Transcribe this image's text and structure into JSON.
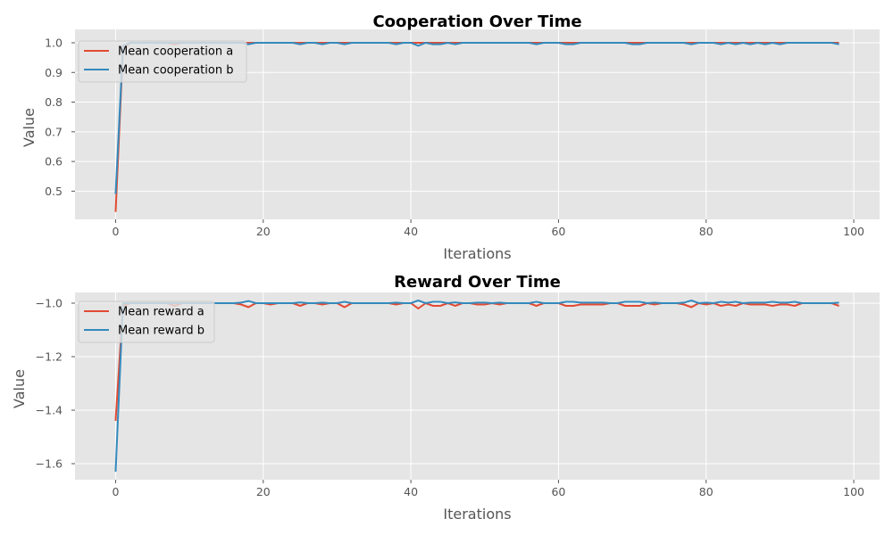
{
  "chart_data": [
    {
      "type": "line",
      "title": "Cooperation Over Time",
      "xlabel": "Iterations",
      "ylabel": "Value",
      "xlim": [
        -5.5,
        103.5
      ],
      "ylim": [
        0.405,
        1.045
      ],
      "xticks": [
        0,
        20,
        40,
        60,
        80,
        100
      ],
      "xtick_labels": [
        "0",
        "20",
        "40",
        "60",
        "80",
        "100"
      ],
      "yticks": [
        0.5,
        0.6,
        0.7,
        0.8,
        0.9,
        1.0
      ],
      "ytick_labels": [
        "0.5",
        "0.6",
        "0.7",
        "0.8",
        "0.9",
        "1.0"
      ],
      "grid": true,
      "legend_position": "upper-left",
      "series": [
        {
          "name": "Mean cooperation a",
          "color": "#E24A33",
          "y": [
            0.43,
            0.98,
            1.0,
            1.0,
            1.0,
            1.0,
            1.0,
            1.0,
            0.995,
            1.0,
            1.0,
            1.0,
            1.0,
            1.0,
            1.0,
            1.0,
            1.0,
            1.0,
            1.0,
            1.0,
            1.0,
            1.0,
            1.0,
            1.0,
            1.0,
            1.0,
            1.0,
            1.0,
            1.0,
            1.0,
            1.0,
            1.0,
            1.0,
            1.0,
            1.0,
            1.0,
            1.0,
            1.0,
            1.0,
            1.0,
            1.0,
            1.0,
            1.0,
            1.0,
            1.0,
            1.0,
            1.0,
            1.0,
            1.0,
            1.0,
            1.0,
            1.0,
            1.0,
            1.0,
            1.0,
            1.0,
            1.0,
            1.0,
            1.0,
            1.0,
            1.0,
            1.0,
            1.0,
            1.0,
            1.0,
            1.0,
            1.0,
            1.0,
            1.0,
            1.0,
            1.0,
            1.0,
            1.0,
            1.0,
            1.0,
            1.0,
            1.0,
            1.0,
            1.0,
            1.0,
            1.0,
            1.0,
            1.0,
            1.0,
            1.0,
            1.0,
            1.0,
            1.0,
            1.0,
            1.0,
            1.0,
            1.0,
            1.0,
            1.0,
            1.0,
            1.0,
            1.0,
            1.0,
            1.0
          ]
        },
        {
          "name": "Mean cooperation b",
          "color": "#348ABD",
          "y": [
            0.49,
            0.99,
            1.0,
            1.0,
            1.0,
            1.0,
            1.0,
            1.0,
            1.0,
            1.0,
            1.0,
            1.0,
            1.0,
            1.0,
            1.0,
            1.0,
            1.0,
            1.0,
            0.995,
            1.0,
            1.0,
            1.0,
            1.0,
            1.0,
            1.0,
            0.995,
            1.0,
            1.0,
            0.995,
            1.0,
            1.0,
            0.995,
            1.0,
            1.0,
            1.0,
            1.0,
            1.0,
            1.0,
            0.995,
            1.0,
            1.0,
            0.99,
            1.0,
            0.995,
            0.995,
            1.0,
            0.995,
            1.0,
            1.0,
            1.0,
            1.0,
            1.0,
            1.0,
            1.0,
            1.0,
            1.0,
            1.0,
            0.995,
            1.0,
            1.0,
            1.0,
            0.995,
            0.995,
            1.0,
            1.0,
            1.0,
            1.0,
            1.0,
            1.0,
            1.0,
            0.995,
            0.995,
            1.0,
            1.0,
            1.0,
            1.0,
            1.0,
            1.0,
            0.995,
            1.0,
            1.0,
            1.0,
            0.995,
            1.0,
            0.995,
            1.0,
            0.995,
            1.0,
            0.995,
            1.0,
            0.995,
            1.0,
            1.0,
            1.0,
            1.0,
            1.0,
            1.0,
            1.0,
            0.995
          ]
        }
      ]
    },
    {
      "type": "line",
      "title": "Reward Over Time",
      "xlabel": "Iterations",
      "ylabel": "Value",
      "xlim": [
        -5.5,
        103.5
      ],
      "ylim": [
        -1.66,
        -0.96
      ],
      "xticks": [
        0,
        20,
        40,
        60,
        80,
        100
      ],
      "xtick_labels": [
        "0",
        "20",
        "40",
        "60",
        "80",
        "100"
      ],
      "yticks": [
        -1.6,
        -1.4,
        -1.2,
        -1.0
      ],
      "ytick_labels": [
        "−1.6",
        "−1.4",
        "−1.2",
        "−1.0"
      ],
      "grid": true,
      "legend_position": "upper-left",
      "series": [
        {
          "name": "Mean reward a",
          "color": "#E24A33",
          "y": [
            -1.44,
            -1.01,
            -1.0,
            -1.0,
            -1.0,
            -1.0,
            -1.0,
            -1.0,
            -1.01,
            -1.0,
            -1.0,
            -1.0,
            -1.0,
            -1.0,
            -1.0,
            -1.0,
            -1.0,
            -1.005,
            -1.015,
            -1.0,
            -1.0,
            -1.005,
            -1.0,
            -1.0,
            -1.0,
            -1.01,
            -1.0,
            -1.0,
            -1.005,
            -1.0,
            -1.0,
            -1.015,
            -1.0,
            -1.0,
            -1.0,
            -1.0,
            -1.0,
            -1.0,
            -1.005,
            -1.0,
            -1.0,
            -1.02,
            -1.0,
            -1.01,
            -1.01,
            -1.0,
            -1.01,
            -1.0,
            -1.0,
            -1.005,
            -1.005,
            -1.0,
            -1.005,
            -1.0,
            -1.0,
            -1.0,
            -1.0,
            -1.01,
            -1.0,
            -1.0,
            -1.0,
            -1.01,
            -1.01,
            -1.005,
            -1.005,
            -1.005,
            -1.005,
            -1.0,
            -1.0,
            -1.01,
            -1.01,
            -1.01,
            -1.0,
            -1.005,
            -1.0,
            -1.0,
            -1.0,
            -1.005,
            -1.015,
            -1.0,
            -1.005,
            -1.0,
            -1.01,
            -1.005,
            -1.01,
            -1.0,
            -1.005,
            -1.005,
            -1.005,
            -1.01,
            -1.005,
            -1.005,
            -1.01,
            -1.0,
            -1.0,
            -1.0,
            -1.0,
            -1.0,
            -1.01
          ]
        },
        {
          "name": "Mean reward b",
          "color": "#348ABD",
          "y": [
            -1.63,
            -1.0,
            -1.0,
            -1.0,
            -1.0,
            -1.0,
            -1.0,
            -1.0,
            -1.0,
            -1.0,
            -1.0,
            -1.0,
            -1.0,
            -1.0,
            -1.0,
            -1.0,
            -1.0,
            -0.998,
            -0.992,
            -1.0,
            -1.0,
            -1.0,
            -1.0,
            -1.0,
            -1.0,
            -0.997,
            -1.0,
            -1.0,
            -0.998,
            -1.0,
            -1.0,
            -0.995,
            -1.0,
            -1.0,
            -1.0,
            -1.0,
            -1.0,
            -1.0,
            -0.998,
            -1.0,
            -1.0,
            -0.99,
            -1.0,
            -0.995,
            -0.995,
            -1.0,
            -0.997,
            -1.0,
            -1.0,
            -0.998,
            -0.998,
            -1.0,
            -0.998,
            -1.0,
            -1.0,
            -1.0,
            -1.0,
            -0.995,
            -1.0,
            -1.0,
            -1.0,
            -0.995,
            -0.995,
            -0.998,
            -0.998,
            -0.998,
            -0.998,
            -1.0,
            -1.0,
            -0.995,
            -0.995,
            -0.995,
            -1.0,
            -0.998,
            -1.0,
            -1.0,
            -1.0,
            -0.998,
            -0.99,
            -1.0,
            -0.998,
            -1.0,
            -0.995,
            -0.998,
            -0.995,
            -1.0,
            -0.998,
            -0.998,
            -0.998,
            -0.995,
            -0.998,
            -0.998,
            -0.995,
            -1.0,
            -1.0,
            -1.0,
            -1.0,
            -1.0,
            -0.998
          ]
        }
      ]
    }
  ]
}
